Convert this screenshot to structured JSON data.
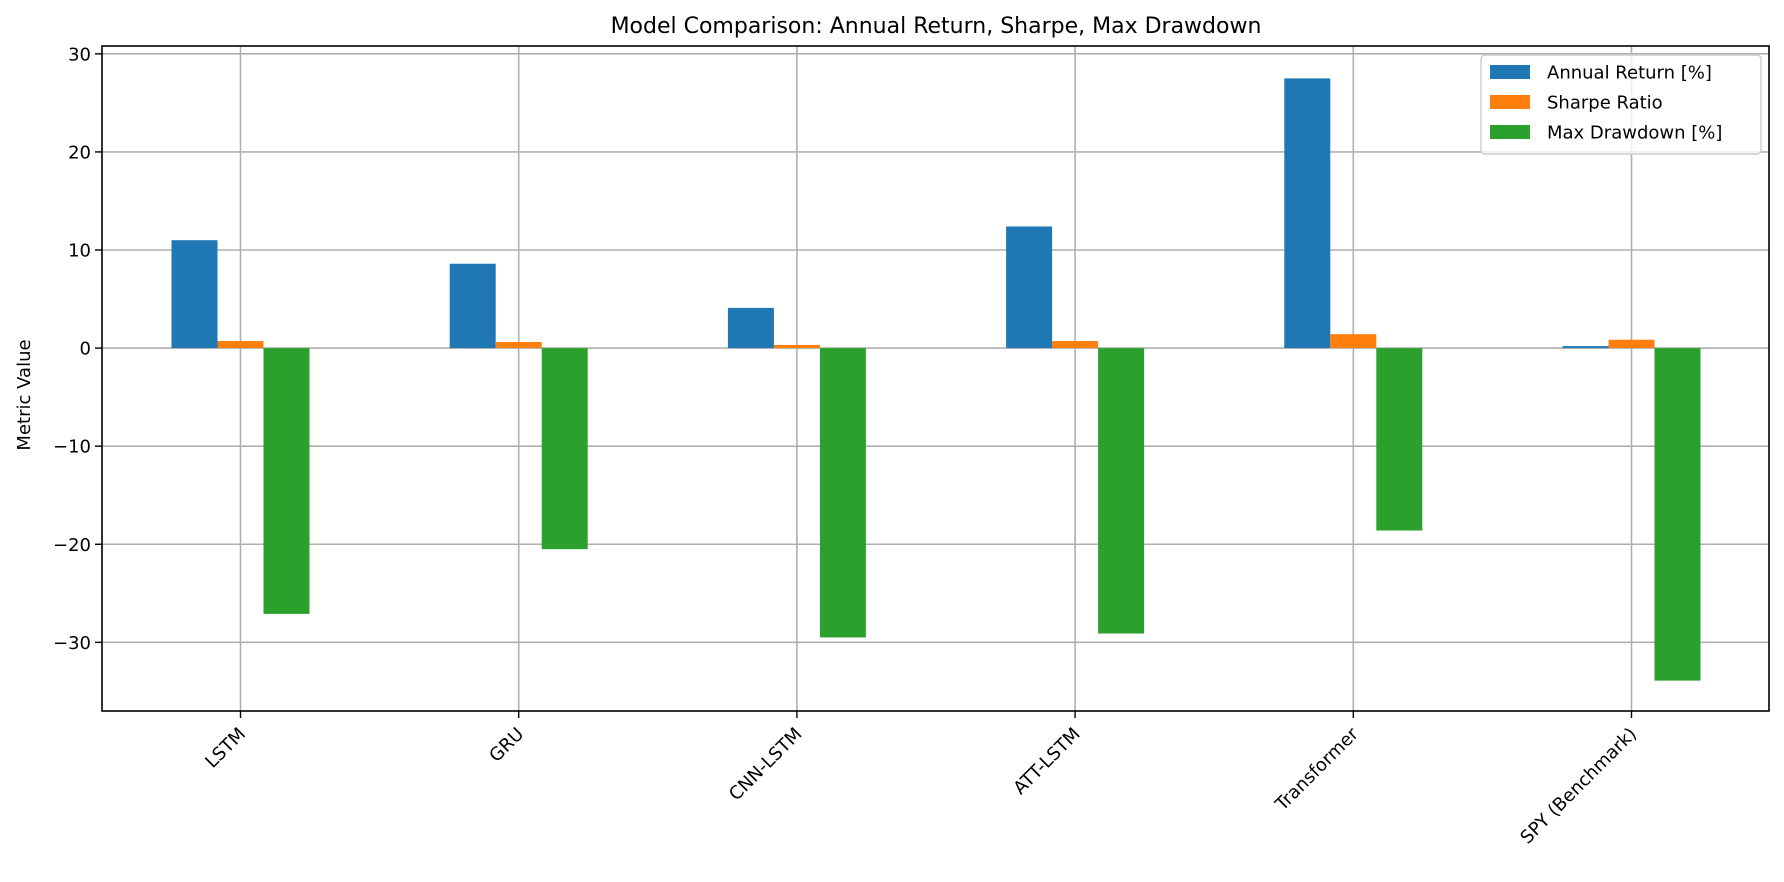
{
  "chart_data": {
    "type": "bar",
    "title": "Model Comparison: Annual Return, Sharpe, Max Drawdown",
    "xlabel": "",
    "ylabel": "Metric Value",
    "categories": [
      "LSTM",
      "GRU",
      "CNN-LSTM",
      "ATT-LSTM",
      "Transformer",
      "SPY (Benchmark)"
    ],
    "series": [
      {
        "name": "Annual Return [%]",
        "color": "#1f77b4",
        "values": [
          11.0,
          8.6,
          4.1,
          12.4,
          27.5,
          0.2
        ]
      },
      {
        "name": "Sharpe Ratio",
        "color": "#ff7f0e",
        "values": [
          0.72,
          0.62,
          0.32,
          0.72,
          1.42,
          0.85
        ]
      },
      {
        "name": "Max Drawdown [%]",
        "color": "#2ca02c",
        "values": [
          -27.1,
          -20.5,
          -29.5,
          -29.1,
          -18.6,
          -33.9
        ]
      }
    ],
    "ylim": [
      -37.0,
      30.8
    ],
    "yticks": [
      -30,
      -20,
      -10,
      0,
      10,
      20,
      30
    ],
    "ytick_labels": [
      "−30",
      "−20",
      "−10",
      "0",
      "10",
      "20",
      "30"
    ],
    "grid": true,
    "legend_position": "top-right"
  }
}
